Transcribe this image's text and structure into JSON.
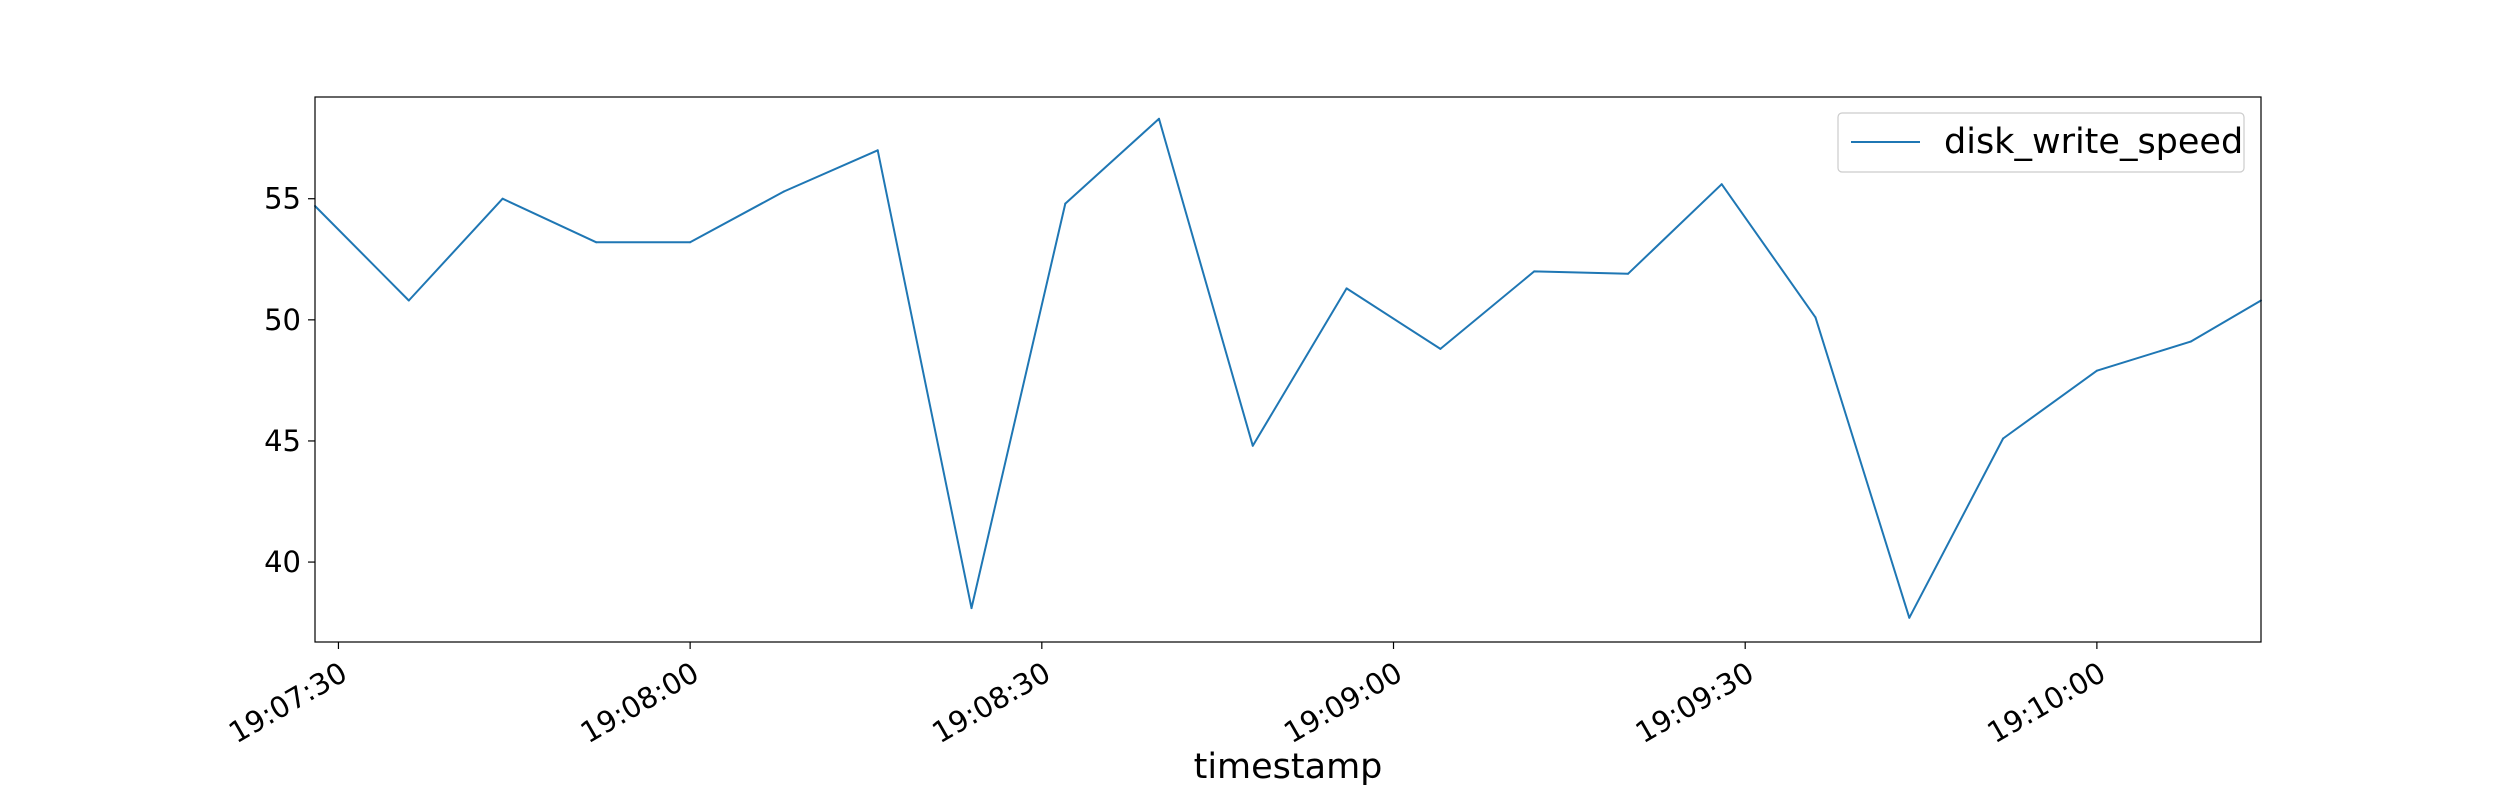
{
  "chart_data": {
    "type": "line",
    "title": "",
    "xlabel": "timestamp",
    "ylabel": "",
    "x_tick_labels": [
      "19:07:30",
      "19:08:00",
      "19:08:30",
      "19:09:00",
      "19:09:30",
      "19:10:00"
    ],
    "y_ticks": [
      40,
      45,
      50,
      55
    ],
    "xlim": [
      "19:07:28",
      "19:10:14"
    ],
    "ylim": [
      36.7,
      59.2
    ],
    "grid": false,
    "legend_position": "top-right",
    "series": [
      {
        "name": "disk_write_speed",
        "color": "#1f77b4",
        "x": [
          "19:07:28",
          "19:07:36",
          "19:07:44",
          "19:07:52",
          "19:08:00",
          "19:08:08",
          "19:08:16",
          "19:08:24",
          "19:08:32",
          "19:08:40",
          "19:08:48",
          "19:08:56",
          "19:09:04",
          "19:09:12",
          "19:09:20",
          "19:09:28",
          "19:09:36",
          "19:09:44",
          "19:09:52",
          "19:10:00",
          "19:10:08",
          "19:10:14"
        ],
        "values": [
          54.7,
          50.8,
          55.0,
          53.2,
          53.2,
          55.3,
          57.0,
          38.1,
          54.8,
          58.3,
          44.8,
          51.3,
          48.8,
          52.0,
          51.9,
          55.6,
          50.1,
          37.7,
          45.1,
          47.9,
          49.1,
          50.8
        ]
      }
    ]
  }
}
